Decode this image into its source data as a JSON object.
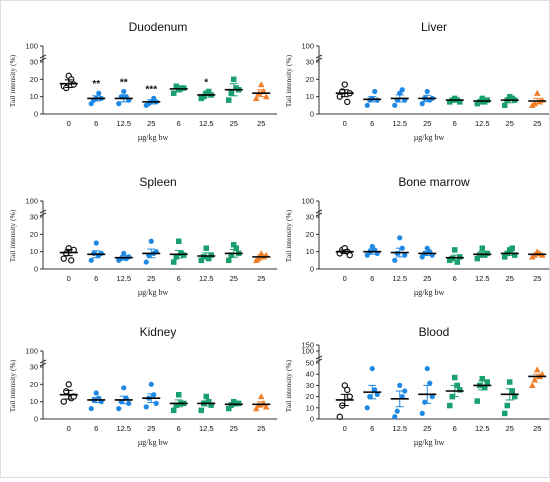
{
  "colors": {
    "control": "#111111",
    "blue": "#1e88e5",
    "green": "#1aa06e",
    "orange": "#f07f2a",
    "axis": "#333333"
  },
  "chart_data": [
    {
      "type": "scatter",
      "title": "Duodenum",
      "ylabel": "Tail intensity (%)",
      "xlabel": "µg/kg bw",
      "yticks": [
        0,
        10,
        20,
        30,
        100
      ],
      "categories": [
        "0",
        "6",
        "12.5",
        "25",
        "6",
        "12.5",
        "25",
        "25"
      ],
      "groups": [
        "control",
        "blue",
        "blue",
        "blue",
        "green",
        "green",
        "green",
        "orange"
      ],
      "mean": [
        17.5,
        9,
        9,
        7,
        14.5,
        11,
        14,
        12
      ],
      "sem": [
        2.2,
        1.5,
        2,
        1.2,
        1.5,
        1.3,
        3.5,
        2
      ],
      "points": [
        [
          16,
          15,
          22,
          20,
          17
        ],
        [
          6,
          8,
          9,
          12,
          9
        ],
        [
          6,
          10,
          13,
          10,
          8
        ],
        [
          5,
          6,
          7,
          9,
          7
        ],
        [
          12,
          16,
          14,
          15,
          15
        ],
        [
          9,
          10,
          12,
          13,
          11
        ],
        [
          8,
          12,
          20,
          15,
          14
        ],
        [
          9,
          12,
          17,
          13,
          10
        ]
      ],
      "annotations": [
        "",
        "**",
        "**",
        "***",
        "",
        "*",
        "",
        ""
      ]
    },
    {
      "type": "scatter",
      "title": "Liver",
      "ylabel": "Tail intensity (%)",
      "xlabel": "µg/kg bw",
      "yticks": [
        0,
        10,
        20,
        30,
        100
      ],
      "categories": [
        "0",
        "6",
        "12.5",
        "25",
        "6",
        "12.5",
        "25",
        "25"
      ],
      "groups": [
        "control",
        "blue",
        "blue",
        "blue",
        "green",
        "green",
        "green",
        "orange"
      ],
      "mean": [
        12,
        8.5,
        9,
        9,
        8,
        7.5,
        8,
        7.5
      ],
      "sem": [
        2,
        1.5,
        2,
        1.8,
        1,
        1,
        1.5,
        1.5
      ],
      "points": [
        [
          10,
          13,
          17,
          7,
          12
        ],
        [
          5,
          8,
          9,
          13,
          8
        ],
        [
          5,
          8,
          12,
          14,
          8
        ],
        [
          6,
          9,
          13,
          8,
          9
        ],
        [
          7,
          8,
          9,
          8,
          7
        ],
        [
          6,
          7,
          9,
          7,
          8
        ],
        [
          5,
          8,
          10,
          9,
          8
        ],
        [
          5,
          6,
          12,
          7,
          8
        ]
      ],
      "annotations": [
        "",
        "",
        "",
        "",
        "",
        "",
        "",
        ""
      ]
    },
    {
      "type": "scatter",
      "title": "Spleen",
      "ylabel": "Tail intensity (%)",
      "xlabel": "µg/kg bw",
      "yticks": [
        0,
        10,
        20,
        30,
        100
      ],
      "categories": [
        "0",
        "6",
        "12.5",
        "25",
        "6",
        "12.5",
        "25",
        "25"
      ],
      "groups": [
        "control",
        "blue",
        "blue",
        "blue",
        "green",
        "green",
        "green",
        "orange"
      ],
      "mean": [
        9.5,
        8.5,
        6.5,
        9,
        8.5,
        7.5,
        9,
        7
      ],
      "sem": [
        1.8,
        2,
        1.2,
        2.5,
        2.2,
        1.8,
        2.2,
        1.2
      ],
      "points": [
        [
          6,
          9,
          12,
          5,
          11
        ],
        [
          5,
          9,
          15,
          8,
          9
        ],
        [
          5,
          6,
          9,
          6,
          7
        ],
        [
          4,
          8,
          16,
          9,
          10
        ],
        [
          4,
          7,
          16,
          9,
          8
        ],
        [
          5,
          7,
          12,
          6,
          8
        ],
        [
          5,
          8,
          14,
          12,
          9
        ],
        [
          5,
          6,
          9,
          7,
          8
        ]
      ],
      "annotations": [
        "",
        "",
        "",
        "",
        "",
        "",
        "",
        ""
      ]
    },
    {
      "type": "scatter",
      "title": "Bone marrow",
      "ylabel": "Tail intensity (%)",
      "xlabel": "µg/kg bw",
      "yticks": [
        0,
        10,
        20,
        30,
        100
      ],
      "categories": [
        "0",
        "6",
        "12.5",
        "25",
        "6",
        "12.5",
        "25",
        "25"
      ],
      "groups": [
        "control",
        "blue",
        "blue",
        "blue",
        "green",
        "green",
        "green",
        "orange"
      ],
      "mean": [
        10,
        10,
        9.5,
        9,
        6.5,
        8.5,
        9,
        8.5
      ],
      "sem": [
        1,
        1.5,
        2.5,
        1.2,
        1.5,
        1.5,
        1.2,
        0.8
      ],
      "points": [
        [
          9,
          11,
          12,
          10,
          8
        ],
        [
          8,
          10,
          13,
          11,
          9
        ],
        [
          5,
          9,
          18,
          12,
          8
        ],
        [
          7,
          9,
          12,
          10,
          8
        ],
        [
          5,
          6,
          11,
          4,
          7
        ],
        [
          6,
          8,
          12,
          8,
          9
        ],
        [
          7,
          9,
          11,
          12,
          8
        ],
        [
          7,
          8,
          10,
          9,
          8
        ]
      ],
      "annotations": [
        "",
        "",
        "",
        "",
        "",
        "",
        "",
        ""
      ]
    },
    {
      "type": "scatter",
      "title": "Kidney",
      "ylabel": "Tail intensity (%)",
      "xlabel": "µg/kg bw",
      "yticks": [
        0,
        10,
        20,
        30,
        100
      ],
      "categories": [
        "0",
        "6",
        "12.5",
        "25",
        "6",
        "12.5",
        "25",
        "25"
      ],
      "groups": [
        "control",
        "blue",
        "blue",
        "blue",
        "green",
        "green",
        "green",
        "orange"
      ],
      "mean": [
        14,
        11,
        11,
        12,
        9,
        9,
        8.5,
        8.5
      ],
      "sem": [
        2.5,
        1.5,
        2.2,
        2.5,
        2,
        1.5,
        1,
        1.5
      ],
      "points": [
        [
          10,
          16,
          20,
          12,
          13
        ],
        [
          6,
          11,
          15,
          12,
          10
        ],
        [
          6,
          10,
          18,
          12,
          9
        ],
        [
          7,
          12,
          20,
          14,
          9
        ],
        [
          5,
          8,
          14,
          9,
          9
        ],
        [
          5,
          9,
          13,
          10,
          8
        ],
        [
          6,
          8,
          10,
          9,
          9
        ],
        [
          6,
          8,
          13,
          9,
          7
        ]
      ],
      "annotations": [
        "",
        "",
        "",
        "",
        "",
        "",
        "",
        ""
      ]
    },
    {
      "type": "scatter",
      "title": "Blood",
      "ylabel": "Tail intensity (%)",
      "xlabel": "µg/kg bw",
      "yticks": [
        0,
        10,
        20,
        30,
        40,
        50,
        100,
        150
      ],
      "categories": [
        "0",
        "6",
        "12.5",
        "25",
        "6",
        "12.5",
        "25",
        "25"
      ],
      "groups": [
        "control",
        "blue",
        "blue",
        "blue",
        "green",
        "green",
        "green",
        "orange"
      ],
      "mean": [
        17,
        24,
        18,
        22,
        25,
        30,
        22,
        38
      ],
      "sem": [
        5,
        6,
        7,
        8,
        5,
        4,
        5,
        2
      ],
      "points": [
        [
          2,
          12,
          30,
          26,
          20
        ],
        [
          10,
          20,
          45,
          26,
          22
        ],
        [
          2,
          7,
          30,
          20,
          25
        ],
        [
          5,
          15,
          45,
          32,
          20
        ],
        [
          12,
          20,
          37,
          30,
          26
        ],
        [
          16,
          30,
          36,
          28,
          33
        ],
        [
          5,
          12,
          33,
          25,
          20
        ],
        [
          30,
          35,
          44,
          38,
          40
        ]
      ],
      "annotations": [
        "",
        "",
        "",
        "",
        "",
        "",
        "",
        ""
      ]
    }
  ]
}
